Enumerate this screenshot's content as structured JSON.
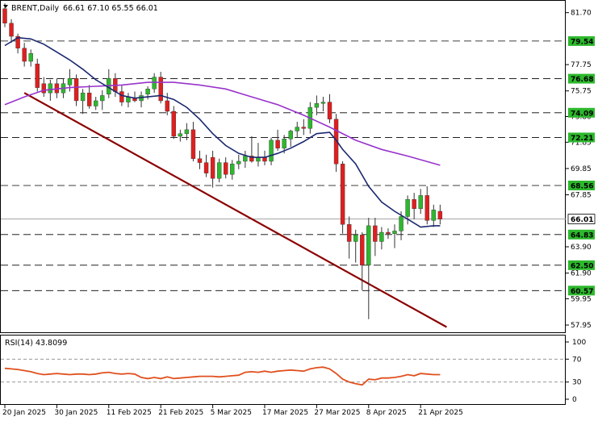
{
  "header": {
    "symbol": "BRENT,Daily",
    "ohlc": "66.61 67.10 65.55 66.01"
  },
  "rsi_header": "RSI(14) 43.8099",
  "chart_data": [
    {
      "type": "candlestick",
      "title": "BRENT,Daily",
      "ylim": [
        57.4,
        82.6
      ],
      "price_ticks": [
        "81.70",
        "77.75",
        "75.75",
        "73.80",
        "71.85",
        "69.85",
        "67.85",
        "63.90",
        "61.90",
        "59.95",
        "57.95"
      ],
      "levels": [
        "79.54",
        "76.68",
        "74.09",
        "72.21",
        "68.56",
        "64.83",
        "62.50",
        "60.57"
      ],
      "current_price": "66.01",
      "x_ticks": [
        {
          "label": "20 Jan 2025",
          "index": 0
        },
        {
          "label": "30 Jan 2025",
          "index": 8
        },
        {
          "label": "11 Feb 2025",
          "index": 16
        },
        {
          "label": "21 Feb 2025",
          "index": 24
        },
        {
          "label": "5 Mar 2025",
          "index": 32
        },
        {
          "label": "17 Mar 2025",
          "index": 40
        },
        {
          "label": "27 Mar 2025",
          "index": 48
        },
        {
          "label": "8 Apr 2025",
          "index": 56
        },
        {
          "label": "21 Apr 2025",
          "index": 64
        }
      ],
      "candles": [
        [
          82.0,
          82.4,
          80.6,
          80.9
        ],
        [
          80.9,
          81.2,
          79.4,
          79.9
        ],
        [
          79.9,
          80.1,
          78.6,
          79.0
        ],
        [
          79.0,
          79.4,
          77.6,
          78.0
        ],
        [
          78.0,
          78.9,
          77.6,
          78.6
        ],
        [
          77.8,
          78.2,
          75.7,
          76.0
        ],
        [
          76.3,
          76.8,
          75.3,
          75.6
        ],
        [
          75.6,
          76.6,
          75.0,
          76.3
        ],
        [
          76.3,
          76.7,
          75.2,
          75.6
        ],
        [
          75.6,
          76.7,
          75.2,
          76.3
        ],
        [
          76.2,
          77.4,
          75.7,
          76.7
        ],
        [
          76.7,
          77.0,
          74.6,
          75.0
        ],
        [
          75.0,
          75.9,
          74.0,
          75.6
        ],
        [
          75.6,
          76.2,
          74.4,
          74.6
        ],
        [
          74.6,
          75.3,
          74.3,
          75.0
        ],
        [
          75.0,
          75.8,
          74.3,
          75.4
        ],
        [
          75.5,
          77.4,
          75.2,
          76.7
        ],
        [
          76.7,
          77.1,
          75.3,
          75.7
        ],
        [
          75.7,
          76.2,
          74.6,
          74.9
        ],
        [
          74.9,
          75.6,
          74.5,
          75.3
        ],
        [
          75.2,
          75.7,
          74.9,
          75.0
        ],
        [
          75.0,
          75.7,
          74.5,
          75.4
        ],
        [
          75.5,
          76.1,
          75.1,
          75.9
        ],
        [
          75.9,
          77.1,
          75.6,
          76.8
        ],
        [
          76.8,
          77.2,
          74.8,
          75.0
        ],
        [
          75.0,
          75.6,
          73.9,
          74.2
        ],
        [
          74.2,
          74.6,
          72.1,
          72.3
        ],
        [
          72.3,
          72.8,
          71.9,
          72.5
        ],
        [
          72.5,
          73.3,
          72.0,
          72.8
        ],
        [
          72.8,
          73.4,
          70.4,
          70.6
        ],
        [
          70.6,
          71.2,
          69.8,
          70.3
        ],
        [
          70.3,
          70.9,
          69.2,
          69.5
        ],
        [
          70.7,
          71.2,
          68.4,
          69.1
        ],
        [
          69.1,
          70.6,
          68.8,
          70.3
        ],
        [
          70.3,
          70.7,
          69.1,
          69.4
        ],
        [
          69.4,
          70.5,
          69.0,
          70.2
        ],
        [
          70.2,
          70.9,
          69.8,
          70.4
        ],
        [
          70.4,
          71.2,
          69.9,
          70.8
        ],
        [
          70.8,
          72.3,
          70.3,
          70.4
        ],
        [
          70.4,
          71.8,
          70.0,
          70.7
        ],
        [
          70.7,
          71.2,
          70.1,
          70.4
        ],
        [
          70.4,
          72.2,
          70.1,
          72.0
        ],
        [
          72.0,
          72.8,
          71.2,
          71.4
        ],
        [
          71.4,
          72.4,
          71.0,
          72.1
        ],
        [
          72.1,
          72.8,
          71.5,
          72.7
        ],
        [
          72.7,
          73.4,
          72.2,
          73.0
        ],
        [
          73.0,
          73.6,
          72.4,
          72.9
        ],
        [
          72.9,
          74.9,
          72.5,
          74.5
        ],
        [
          74.5,
          75.4,
          73.9,
          74.8
        ],
        [
          74.8,
          75.3,
          74.2,
          74.9
        ],
        [
          74.9,
          75.5,
          73.3,
          73.6
        ],
        [
          73.6,
          74.0,
          69.6,
          70.2
        ],
        [
          70.2,
          70.4,
          64.9,
          65.6
        ],
        [
          65.6,
          66.2,
          63.0,
          64.3
        ],
        [
          64.3,
          65.2,
          62.7,
          64.8
        ],
        [
          64.8,
          65.0,
          60.6,
          62.5
        ],
        [
          62.5,
          66.1,
          58.4,
          65.5
        ],
        [
          65.5,
          66.1,
          63.2,
          64.3
        ],
        [
          64.3,
          65.4,
          63.7,
          65.0
        ],
        [
          65.0,
          65.3,
          64.5,
          64.9
        ],
        [
          64.9,
          65.6,
          63.8,
          65.1
        ],
        [
          65.1,
          66.6,
          64.4,
          66.2
        ],
        [
          66.2,
          67.8,
          65.6,
          67.5
        ],
        [
          67.5,
          68.0,
          66.0,
          66.8
        ],
        [
          66.8,
          68.3,
          66.4,
          67.8
        ],
        [
          67.8,
          68.5,
          65.6,
          65.9
        ],
        [
          65.9,
          67.1,
          65.4,
          66.7
        ],
        [
          66.6,
          67.1,
          65.6,
          66.0
        ]
      ],
      "ma_fast": [
        [
          0,
          79.2
        ],
        [
          2,
          79.8
        ],
        [
          4,
          79.7
        ],
        [
          6,
          79.3
        ],
        [
          8,
          78.7
        ],
        [
          10,
          78.1
        ],
        [
          12,
          77.4
        ],
        [
          14,
          76.6
        ],
        [
          16,
          76.0
        ],
        [
          18,
          75.4
        ],
        [
          20,
          75.2
        ],
        [
          22,
          75.3
        ],
        [
          24,
          75.4
        ],
        [
          26,
          75.1
        ],
        [
          28,
          74.5
        ],
        [
          30,
          73.6
        ],
        [
          32,
          72.5
        ],
        [
          34,
          71.6
        ],
        [
          36,
          71.0
        ],
        [
          38,
          70.7
        ],
        [
          40,
          70.7
        ],
        [
          42,
          71.0
        ],
        [
          44,
          71.4
        ],
        [
          46,
          71.9
        ],
        [
          48,
          72.5
        ],
        [
          50,
          72.6
        ],
        [
          51,
          72.0
        ],
        [
          52,
          71.3
        ],
        [
          54,
          70.2
        ],
        [
          56,
          68.5
        ],
        [
          58,
          67.3
        ],
        [
          60,
          66.6
        ],
        [
          62,
          66.0
        ],
        [
          64,
          65.4
        ],
        [
          66,
          65.5
        ],
        [
          67,
          65.5
        ]
      ],
      "ma_slow": [
        [
          0,
          74.7
        ],
        [
          3,
          75.3
        ],
        [
          6,
          75.8
        ],
        [
          10,
          76.0
        ],
        [
          14,
          76.1
        ],
        [
          18,
          76.2
        ],
        [
          22,
          76.4
        ],
        [
          26,
          76.4
        ],
        [
          30,
          76.2
        ],
        [
          34,
          75.9
        ],
        [
          38,
          75.3
        ],
        [
          42,
          74.7
        ],
        [
          46,
          73.9
        ],
        [
          50,
          73.0
        ],
        [
          54,
          72.0
        ],
        [
          58,
          71.3
        ],
        [
          62,
          70.8
        ],
        [
          67,
          70.1
        ]
      ],
      "trendline": [
        [
          3,
          75.6
        ],
        [
          68,
          57.8
        ]
      ]
    },
    {
      "type": "line",
      "title": "RSI(14) 43.8099",
      "ylim": [
        0,
        100
      ],
      "y_ticks": [
        "100",
        "70",
        "30",
        "0"
      ],
      "levels": [
        70,
        30
      ],
      "values": [
        [
          0,
          54
        ],
        [
          1,
          53
        ],
        [
          2,
          52
        ],
        [
          3,
          50
        ],
        [
          4,
          48
        ],
        [
          5,
          45
        ],
        [
          6,
          43
        ],
        [
          7,
          44
        ],
        [
          8,
          45
        ],
        [
          9,
          44
        ],
        [
          10,
          43
        ],
        [
          11,
          44
        ],
        [
          12,
          44
        ],
        [
          13,
          43
        ],
        [
          14,
          44
        ],
        [
          15,
          46
        ],
        [
          16,
          47
        ],
        [
          17,
          45
        ],
        [
          18,
          44
        ],
        [
          19,
          45
        ],
        [
          20,
          44
        ],
        [
          21,
          38
        ],
        [
          22,
          36
        ],
        [
          23,
          38
        ],
        [
          24,
          36
        ],
        [
          25,
          39
        ],
        [
          26,
          36
        ],
        [
          27,
          37
        ],
        [
          28,
          38
        ],
        [
          29,
          39
        ],
        [
          30,
          40
        ],
        [
          31,
          40
        ],
        [
          32,
          40
        ],
        [
          33,
          39
        ],
        [
          34,
          40
        ],
        [
          35,
          41
        ],
        [
          36,
          42
        ],
        [
          37,
          47
        ],
        [
          38,
          48
        ],
        [
          39,
          47
        ],
        [
          40,
          49
        ],
        [
          41,
          47
        ],
        [
          42,
          49
        ],
        [
          43,
          50
        ],
        [
          44,
          51
        ],
        [
          45,
          50
        ],
        [
          46,
          49
        ],
        [
          47,
          53
        ],
        [
          48,
          55
        ],
        [
          49,
          56
        ],
        [
          50,
          53
        ],
        [
          51,
          45
        ],
        [
          52,
          35
        ],
        [
          53,
          30
        ],
        [
          54,
          27
        ],
        [
          55,
          25
        ],
        [
          56,
          35
        ],
        [
          57,
          34
        ],
        [
          58,
          37
        ],
        [
          59,
          37
        ],
        [
          60,
          38
        ],
        [
          61,
          40
        ],
        [
          62,
          43
        ],
        [
          63,
          41
        ],
        [
          64,
          45
        ],
        [
          65,
          44
        ],
        [
          66,
          43
        ],
        [
          67,
          43
        ]
      ]
    }
  ],
  "colors": {
    "bull": "#2db82d",
    "bear": "#e01f1f",
    "ma_fast": "#1a2870",
    "ma_slow": "#9933cc",
    "trend": "#8b0000",
    "rsi": "#e0501e",
    "level_label_bg": "#2db82d",
    "current_price_bg": "#ffffff"
  }
}
